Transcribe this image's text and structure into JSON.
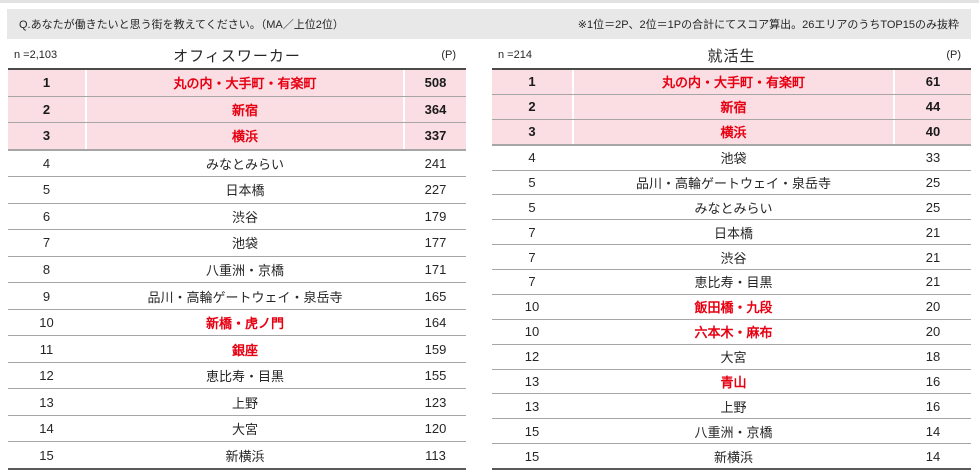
{
  "top_bar": {
    "question": "Q.あなたが働きたいと思う街を教えてください。（MA／上位2位）",
    "note": "※1位＝2P、2位＝1Pの合計にてスコア算出。26エリアのうちTOP15のみ抜粋"
  },
  "colors": {
    "accent_red": "#e60012",
    "highlight_pink": "#fadee3",
    "bar_gray": "#e8e8e8"
  },
  "tables": [
    {
      "id": "office-workers",
      "n_label": "n =2,103",
      "title": "オフィスワーカー",
      "unit": "(P)",
      "rows": [
        {
          "rank": "1",
          "area": "丸の内・大手町・有楽町",
          "score": "508",
          "style": "top"
        },
        {
          "rank": "2",
          "area": "新宿",
          "score": "364",
          "style": "top"
        },
        {
          "rank": "3",
          "area": "横浜",
          "score": "337",
          "style": "top"
        },
        {
          "rank": "4",
          "area": "みなとみらい",
          "score": "241",
          "style": "plain"
        },
        {
          "rank": "5",
          "area": "日本橋",
          "score": "227",
          "style": "plain"
        },
        {
          "rank": "6",
          "area": "渋谷",
          "score": "179",
          "style": "plain"
        },
        {
          "rank": "7",
          "area": "池袋",
          "score": "177",
          "style": "plain"
        },
        {
          "rank": "8",
          "area": "八重洲・京橋",
          "score": "171",
          "style": "plain"
        },
        {
          "rank": "9",
          "area": "品川・高輪ゲートウェイ・泉岳寺",
          "score": "165",
          "style": "plain"
        },
        {
          "rank": "10",
          "area": "新橋・虎ノ門",
          "score": "164",
          "style": "red"
        },
        {
          "rank": "11",
          "area": "銀座",
          "score": "159",
          "style": "red"
        },
        {
          "rank": "12",
          "area": "恵比寿・目黒",
          "score": "155",
          "style": "plain"
        },
        {
          "rank": "13",
          "area": "上野",
          "score": "123",
          "style": "plain"
        },
        {
          "rank": "14",
          "area": "大宮",
          "score": "120",
          "style": "plain"
        },
        {
          "rank": "15",
          "area": "新横浜",
          "score": "113",
          "style": "plain"
        }
      ]
    },
    {
      "id": "job-hunting-students",
      "n_label": "n =214",
      "title": "就活生",
      "unit": "(P)",
      "rows": [
        {
          "rank": "1",
          "area": "丸の内・大手町・有楽町",
          "score": "61",
          "style": "top"
        },
        {
          "rank": "2",
          "area": "新宿",
          "score": "44",
          "style": "top"
        },
        {
          "rank": "3",
          "area": "横浜",
          "score": "40",
          "style": "top"
        },
        {
          "rank": "4",
          "area": "池袋",
          "score": "33",
          "style": "plain"
        },
        {
          "rank": "5",
          "area": "品川・高輪ゲートウェイ・泉岳寺",
          "score": "25",
          "style": "plain"
        },
        {
          "rank": "5",
          "area": "みなとみらい",
          "score": "25",
          "style": "plain"
        },
        {
          "rank": "7",
          "area": "日本橋",
          "score": "21",
          "style": "plain"
        },
        {
          "rank": "7",
          "area": "渋谷",
          "score": "21",
          "style": "plain"
        },
        {
          "rank": "7",
          "area": "恵比寿・目黒",
          "score": "21",
          "style": "plain"
        },
        {
          "rank": "10",
          "area": "飯田橋・九段",
          "score": "20",
          "style": "red"
        },
        {
          "rank": "10",
          "area": "六本木・麻布",
          "score": "20",
          "style": "red"
        },
        {
          "rank": "12",
          "area": "大宮",
          "score": "18",
          "style": "plain"
        },
        {
          "rank": "13",
          "area": "青山",
          "score": "16",
          "style": "red"
        },
        {
          "rank": "13",
          "area": "上野",
          "score": "16",
          "style": "plain"
        },
        {
          "rank": "15",
          "area": "八重洲・京橋",
          "score": "14",
          "style": "plain"
        },
        {
          "rank": "15",
          "area": "新横浜",
          "score": "14",
          "style": "plain"
        }
      ]
    }
  ]
}
